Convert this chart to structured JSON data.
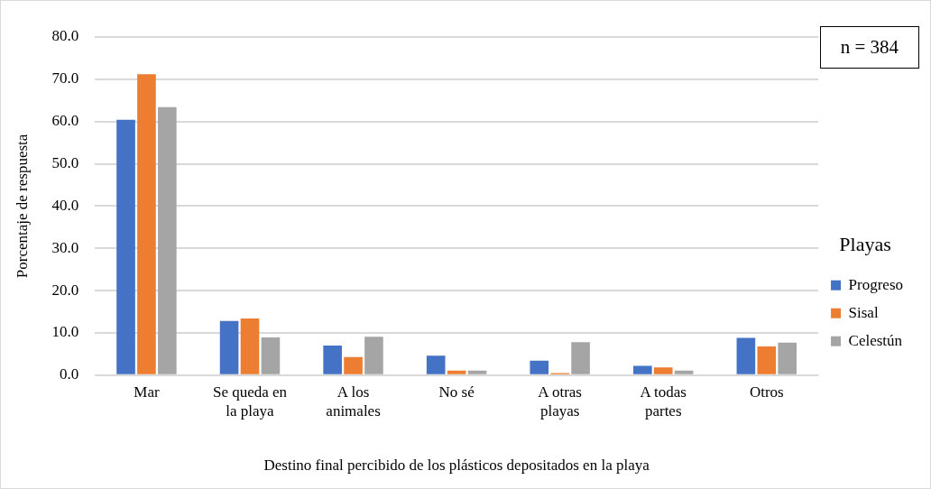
{
  "chart_data": {
    "type": "bar",
    "xlabel": "Destino final percibido de los plásticos depositados en la playa",
    "ylabel": "Porcentaje de respuesta",
    "legend_title": "Playas",
    "annotations": [
      "n = 384"
    ],
    "categories": [
      "Mar",
      "Se queda en la playa",
      "A los animales",
      "No sé",
      "A otras playas",
      "A todas partes",
      "Otros"
    ],
    "series": [
      {
        "name": "Progreso",
        "color": "#4472c4",
        "values": [
          60.4,
          12.8,
          7.0,
          4.6,
          3.4,
          2.2,
          8.8
        ]
      },
      {
        "name": "Sisal",
        "color": "#ed7d31",
        "values": [
          71.2,
          13.4,
          4.3,
          1.1,
          0.5,
          1.8,
          6.8
        ]
      },
      {
        "name": "Celestún",
        "color": "#a5a5a5",
        "values": [
          63.4,
          8.9,
          9.1,
          1.1,
          7.8,
          1.1,
          7.7
        ]
      }
    ],
    "ylim": [
      0,
      80
    ],
    "yticks": [
      {
        "value": 0,
        "label": "0.0"
      },
      {
        "value": 10,
        "label": "10.0"
      },
      {
        "value": 20,
        "label": "20.0"
      },
      {
        "value": 30,
        "label": "30.0"
      },
      {
        "value": 40,
        "label": "40.0"
      },
      {
        "value": 50,
        "label": "50.0"
      },
      {
        "value": 60,
        "label": "60.0"
      },
      {
        "value": 70,
        "label": "70.0"
      },
      {
        "value": 80,
        "label": "80.0"
      }
    ],
    "grid": "y",
    "legend": "right"
  }
}
